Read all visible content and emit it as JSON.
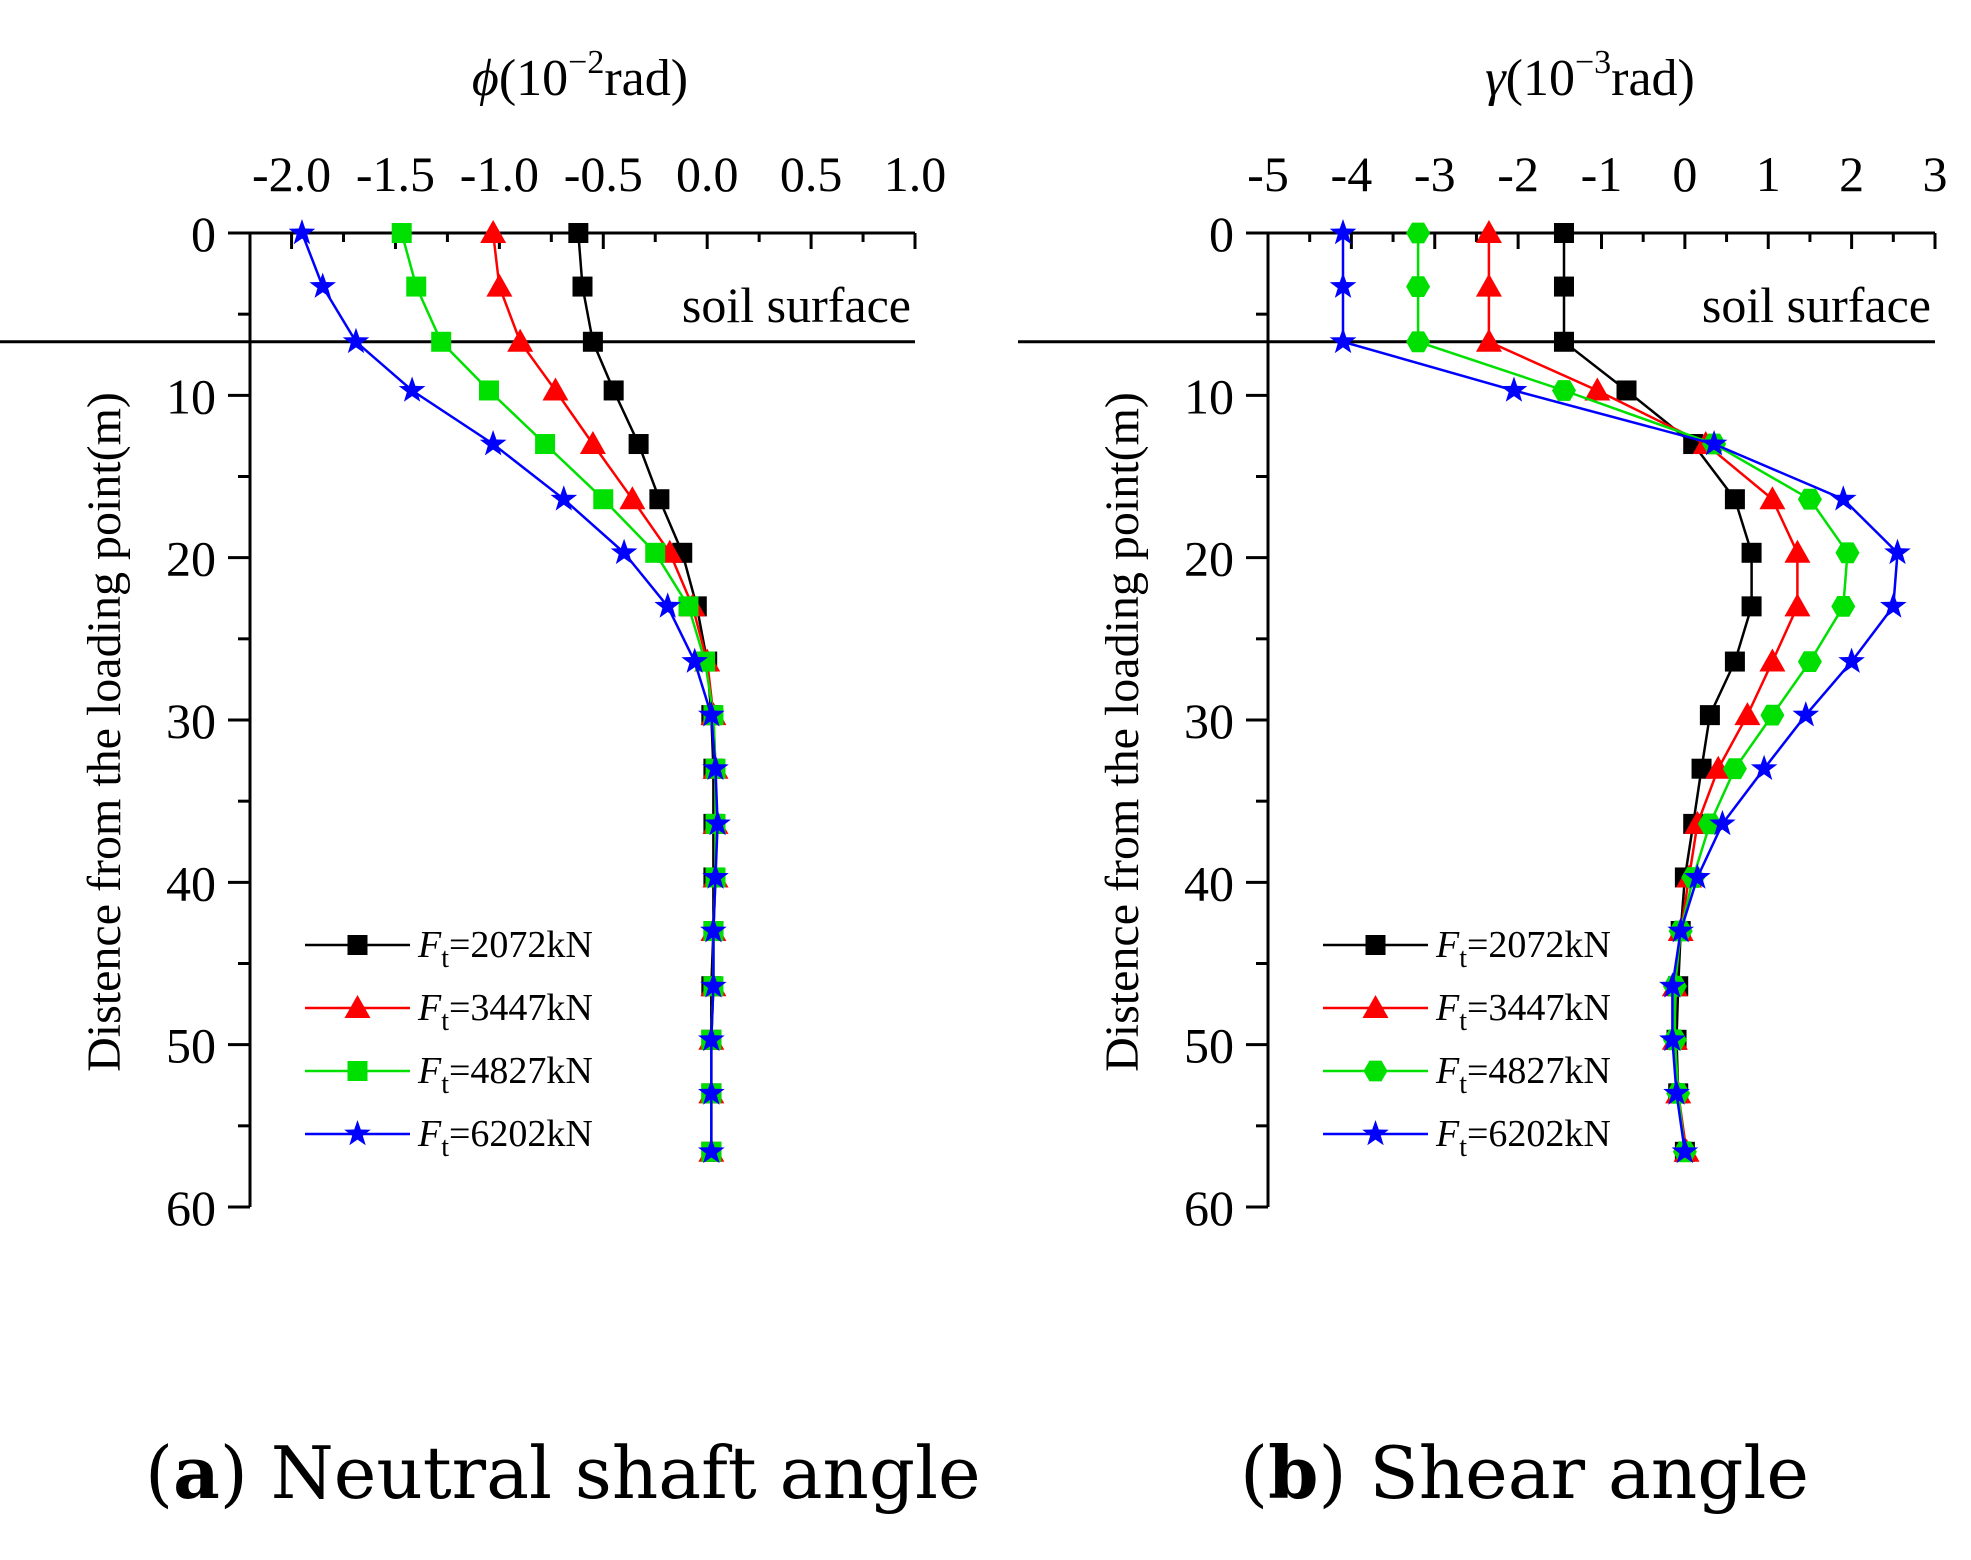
{
  "chart_data": [
    {
      "type": "line",
      "panel": "a",
      "title": "Neutral shaft angle",
      "xlabel_symbol": "ϕ",
      "xlabel_unit": "(10",
      "xlabel_exp": "−2",
      "xlabel_tail": "rad)",
      "ylabel": "Distence from the loading point(m)",
      "xlim": [
        -2.2,
        1.0
      ],
      "ylim": [
        0,
        60
      ],
      "xticks": [
        -2.0,
        -1.5,
        -1.0,
        -0.5,
        0.0,
        0.5,
        1.0
      ],
      "xtick_labels": [
        "-2.0",
        "-1.5",
        "-1.0",
        "-0.5",
        "0.0",
        "0.5",
        "1.0"
      ],
      "yticks": [
        0,
        10,
        20,
        30,
        40,
        50,
        60
      ],
      "ytick_labels": [
        "0",
        "10",
        "20",
        "30",
        "40",
        "50",
        "60"
      ],
      "soil_surface_depth": 6.7,
      "soil_surface_label": "soil surface",
      "legend_position": "bottom-left",
      "depths": [
        0,
        3.3,
        6.7,
        9.7,
        13.0,
        16.4,
        19.7,
        23.0,
        26.4,
        29.7,
        33.0,
        36.4,
        39.7,
        43.0,
        46.4,
        49.7,
        53.0,
        56.6
      ],
      "series": [
        {
          "name": "F_t=2072kN",
          "legend_prefix": "F",
          "legend_sub": "t",
          "legend_rest": "=2072kN",
          "color": "#000000",
          "marker": "square",
          "values": [
            -0.62,
            -0.6,
            -0.55,
            -0.45,
            -0.33,
            -0.23,
            -0.12,
            -0.05,
            0.0,
            0.02,
            0.03,
            0.03,
            0.03,
            0.03,
            0.02,
            0.02,
            0.02,
            0.02
          ]
        },
        {
          "name": "F_t=3447kN",
          "legend_prefix": "F",
          "legend_sub": "t",
          "legend_rest": "=3447kN",
          "color": "#ff0000",
          "marker": "triangle",
          "values": [
            -1.03,
            -1.0,
            -0.9,
            -0.73,
            -0.55,
            -0.36,
            -0.18,
            -0.07,
            0.0,
            0.03,
            0.04,
            0.04,
            0.04,
            0.03,
            0.03,
            0.02,
            0.02,
            0.02
          ]
        },
        {
          "name": "F_t=4827kN",
          "legend_prefix": "F",
          "legend_sub": "t",
          "legend_rest": "=4827kN",
          "color": "#00e000",
          "marker": "square",
          "values": [
            -1.47,
            -1.4,
            -1.28,
            -1.05,
            -0.78,
            -0.5,
            -0.25,
            -0.09,
            -0.01,
            0.03,
            0.04,
            0.04,
            0.04,
            0.03,
            0.03,
            0.02,
            0.02,
            0.02
          ]
        },
        {
          "name": "F_t=6202kN",
          "legend_prefix": "F",
          "legend_sub": "t",
          "legend_rest": "=6202kN",
          "color": "#0000ff",
          "marker": "star",
          "values": [
            -1.95,
            -1.85,
            -1.69,
            -1.42,
            -1.03,
            -0.69,
            -0.4,
            -0.19,
            -0.06,
            0.02,
            0.04,
            0.05,
            0.04,
            0.03,
            0.03,
            0.02,
            0.02,
            0.02
          ]
        }
      ]
    },
    {
      "type": "line",
      "panel": "b",
      "title": "Shear angle",
      "xlabel_symbol": "γ",
      "xlabel_unit": "(10",
      "xlabel_exp": "−3",
      "xlabel_tail": "rad)",
      "ylabel": "Distence from the loading point(m)",
      "xlim": [
        -5,
        3
      ],
      "ylim": [
        0,
        60
      ],
      "xticks": [
        -5,
        -4,
        -3,
        -2,
        -1,
        0,
        1,
        2,
        3
      ],
      "xtick_labels": [
        "-5",
        "-4",
        "-3",
        "-2",
        "-1",
        "0",
        "1",
        "2",
        "3"
      ],
      "yticks": [
        0,
        10,
        20,
        30,
        40,
        50,
        60
      ],
      "ytick_labels": [
        "0",
        "10",
        "20",
        "30",
        "40",
        "50",
        "60"
      ],
      "soil_surface_depth": 6.7,
      "soil_surface_label": "soil surface",
      "legend_position": "bottom-left",
      "depths": [
        0,
        3.3,
        6.7,
        9.7,
        13.0,
        16.4,
        19.7,
        23.0,
        26.4,
        29.7,
        33.0,
        36.4,
        39.7,
        43.0,
        46.4,
        49.7,
        53.0,
        56.6
      ],
      "series": [
        {
          "name": "F_t=2072kN",
          "legend_prefix": "F",
          "legend_sub": "t",
          "legend_rest": "=2072kN",
          "color": "#000000",
          "marker": "square",
          "values": [
            -1.45,
            -1.45,
            -1.45,
            -0.7,
            0.1,
            0.6,
            0.8,
            0.8,
            0.6,
            0.3,
            0.2,
            0.1,
            0.0,
            -0.05,
            -0.08,
            -0.1,
            -0.08,
            0.0
          ]
        },
        {
          "name": "F_t=3447kN",
          "legend_prefix": "F",
          "legend_sub": "t",
          "legend_rest": "=3447kN",
          "color": "#ff0000",
          "marker": "triangle",
          "values": [
            -2.35,
            -2.35,
            -2.35,
            -1.05,
            0.25,
            1.05,
            1.35,
            1.35,
            1.05,
            0.75,
            0.4,
            0.15,
            0.05,
            -0.05,
            -0.12,
            -0.12,
            -0.08,
            0.02
          ]
        },
        {
          "name": "F_t=4827kN",
          "legend_prefix": "F",
          "legend_sub": "t",
          "legend_rest": "=4827kN",
          "color": "#00e000",
          "marker": "hexagon",
          "values": [
            -3.2,
            -3.2,
            -3.2,
            -1.45,
            0.35,
            1.5,
            1.95,
            1.9,
            1.5,
            1.05,
            0.6,
            0.3,
            0.1,
            -0.05,
            -0.12,
            -0.12,
            -0.08,
            0.0
          ]
        },
        {
          "name": "F_t=6202kN",
          "legend_prefix": "F",
          "legend_sub": "t",
          "legend_rest": "=6202kN",
          "color": "#0000ff",
          "marker": "star",
          "values": [
            -4.1,
            -4.1,
            -4.1,
            -2.05,
            0.35,
            1.9,
            2.55,
            2.5,
            2.0,
            1.45,
            0.95,
            0.45,
            0.15,
            -0.05,
            -0.15,
            -0.15,
            -0.1,
            0.0
          ]
        }
      ]
    }
  ],
  "captions": {
    "a": {
      "letter": "a",
      "text": " Neutral shaft angle"
    },
    "b": {
      "letter": "b",
      "text": " Shear angle"
    }
  }
}
